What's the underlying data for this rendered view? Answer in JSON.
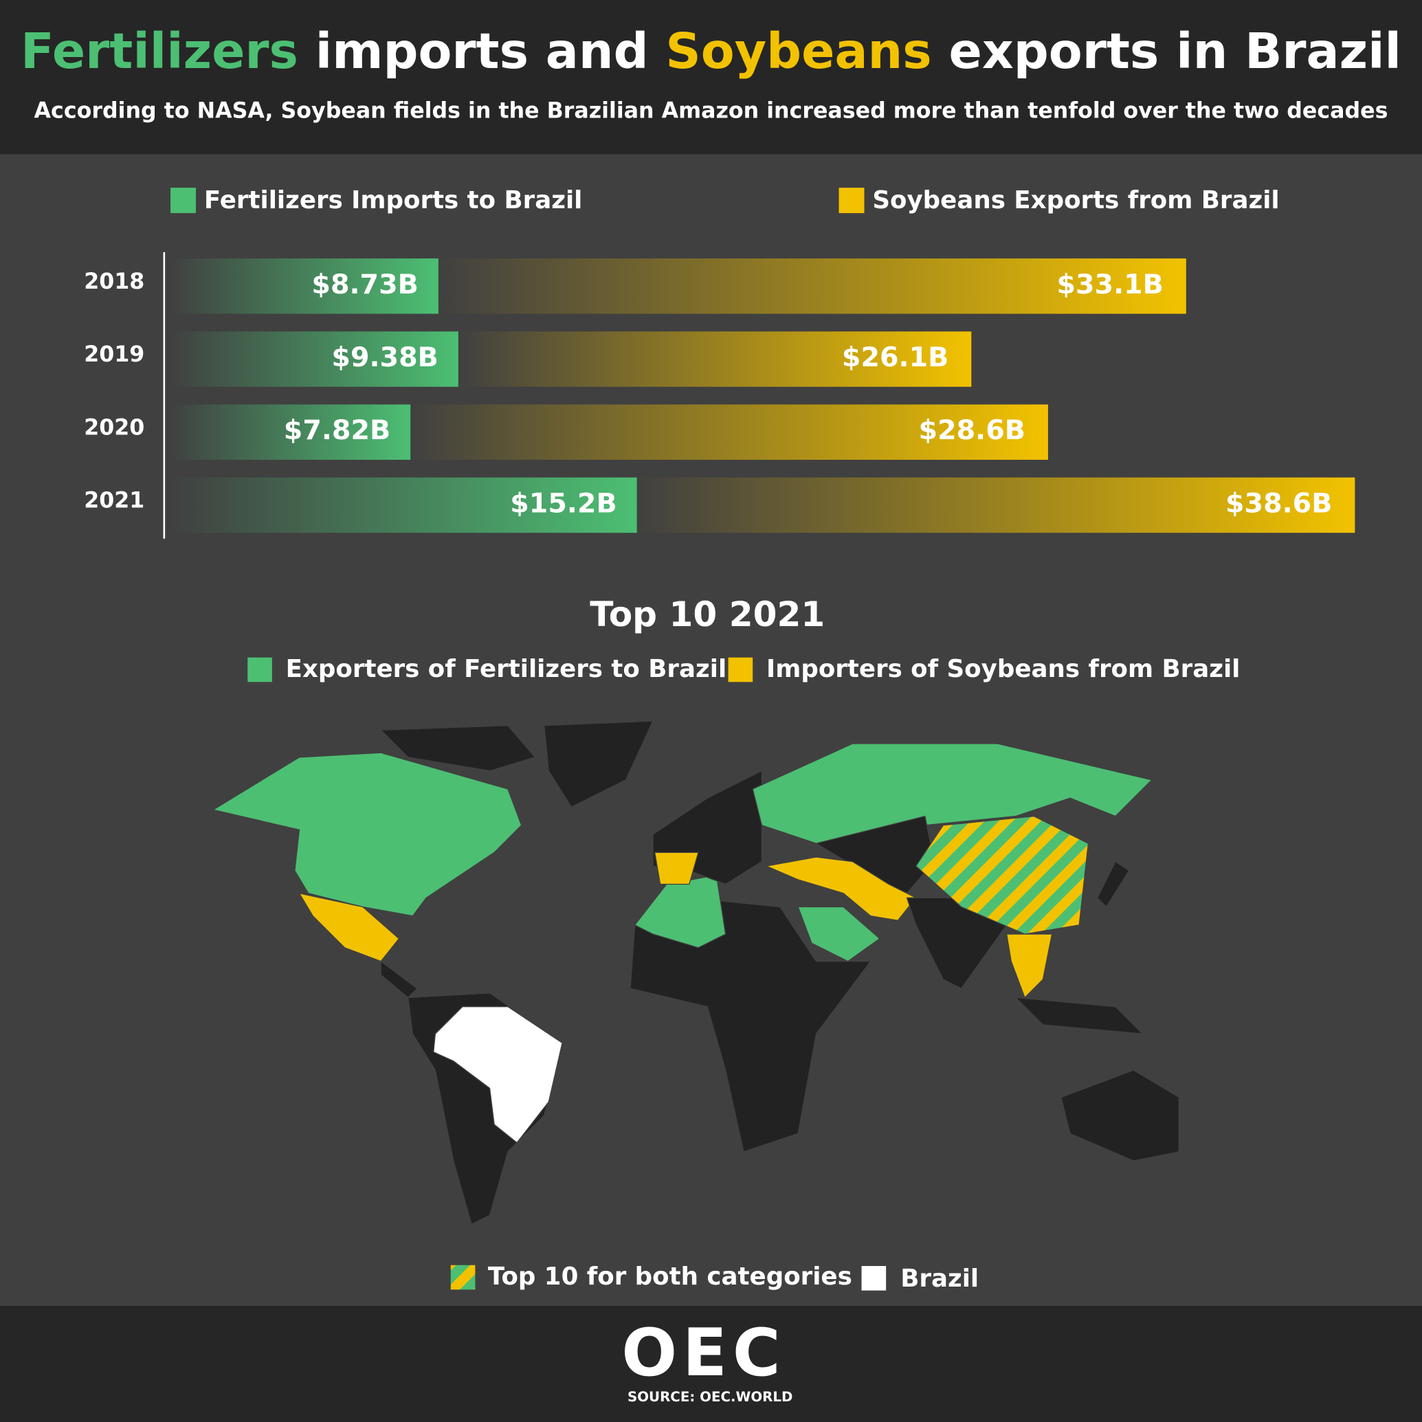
{
  "header": {
    "title_parts": [
      "Fertilizers",
      "imports and",
      "Soybeans",
      "exports in Brazil"
    ],
    "subtitle": "According to NASA, Soybean fields in the Brazilian Amazon increased more than tenfold over the two decades"
  },
  "chart_data": {
    "type": "bar",
    "orientation": "horizontal",
    "overlap": true,
    "categories": [
      "2018",
      "2019",
      "2020",
      "2021"
    ],
    "series": [
      {
        "name": "Fertilizers Imports to Brazil",
        "color": "#4cbf73",
        "values": [
          8.73,
          9.38,
          7.82,
          15.2
        ],
        "value_labels": [
          "$8.73B",
          "$9.38B",
          "$7.82B",
          "$15.2B"
        ]
      },
      {
        "name": "Soybeans Exports from Brazil",
        "color": "#f2c200",
        "values": [
          33.1,
          26.1,
          28.6,
          38.6
        ],
        "value_labels": [
          "$33.1B",
          "$26.1B",
          "$28.6B",
          "$38.6B"
        ]
      }
    ]
  },
  "map": {
    "title": "Top 10 2021",
    "legend": [
      {
        "label": "Exporters of Fertilizers to Brazil",
        "color": "#4cbf73"
      },
      {
        "label": "Importers of Soybeans from Brazil",
        "color": "#f2c200"
      }
    ],
    "bottom_legend": [
      "Top 10 for both categories",
      "Brazil"
    ]
  },
  "footer": {
    "logo": "OEC",
    "source": "SOURCE: OEC.WORLD"
  }
}
